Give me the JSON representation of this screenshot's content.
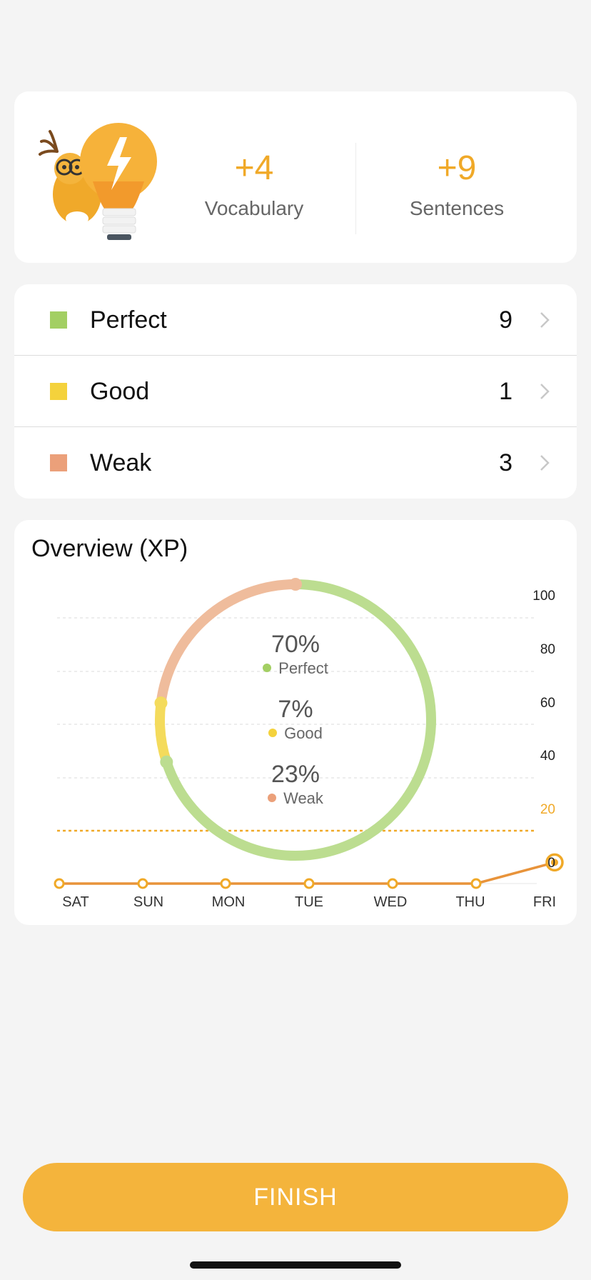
{
  "summary": {
    "vocabulary": {
      "value": "+4",
      "label": "Vocabulary"
    },
    "sentences": {
      "value": "+9",
      "label": "Sentences"
    }
  },
  "scores": [
    {
      "label": "Perfect",
      "count": "9",
      "color": "#a3cf63"
    },
    {
      "label": "Good",
      "count": "1",
      "color": "#f4d23c"
    },
    {
      "label": "Weak",
      "count": "3",
      "color": "#eba07a"
    }
  ],
  "overview": {
    "title": "Overview (XP)",
    "breakdown": [
      {
        "pct": "70%",
        "label": "Perfect",
        "color": "#a3cf63"
      },
      {
        "pct": "7%",
        "label": "Good",
        "color": "#f4d23c"
      },
      {
        "pct": "23%",
        "label": "Weak",
        "color": "#eba07a"
      }
    ]
  },
  "chart_data": {
    "type": "line",
    "title": "Overview (XP)",
    "categories": [
      "SAT",
      "SUN",
      "MON",
      "TUE",
      "WED",
      "THU",
      "FRI"
    ],
    "series": [
      {
        "values": [
          0,
          0,
          0,
          0,
          0,
          0,
          8
        ]
      }
    ],
    "yticks": [
      "100",
      "80",
      "60",
      "40",
      "20",
      "0"
    ],
    "ylim": [
      0,
      100
    ],
    "target_line": 20,
    "target_color": "#f0a928",
    "line_color": "#e8933a",
    "grid": true
  },
  "finish_label": "FINISH"
}
